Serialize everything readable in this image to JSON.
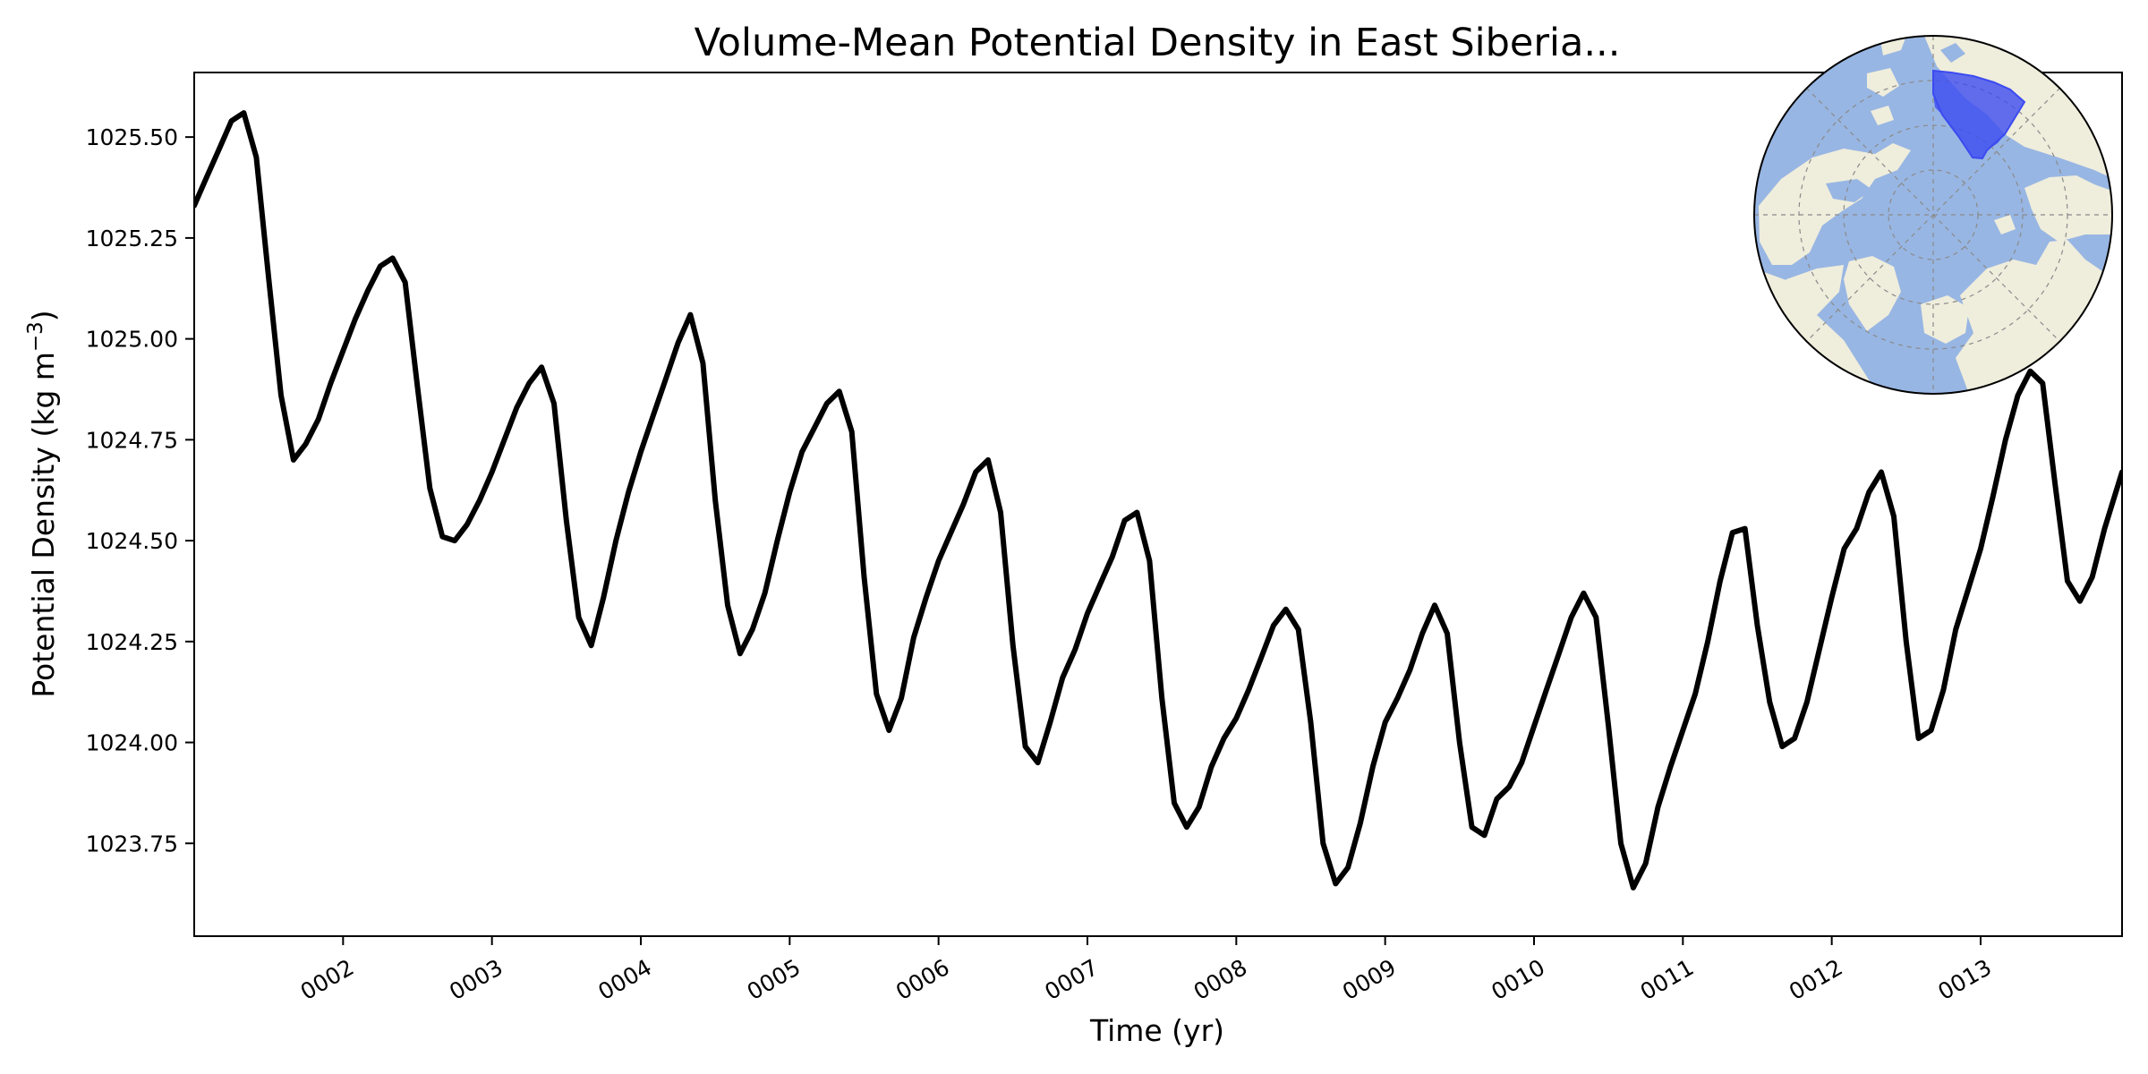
{
  "chart_data": {
    "type": "line",
    "title": "Volume-Mean Potential Density in East Siberia...",
    "xlabel": "Time (yr)",
    "ylabel": "Potential Density (kg m",
    "ylabel_exponent": "−3",
    "ylabel_close": ")",
    "xlim": [
      1.0,
      13.95
    ],
    "ylim": [
      1023.52,
      1025.66
    ],
    "grid": false,
    "x_ticks": [
      {
        "value": 2,
        "label": "0002"
      },
      {
        "value": 3,
        "label": "0003"
      },
      {
        "value": 4,
        "label": "0004"
      },
      {
        "value": 5,
        "label": "0005"
      },
      {
        "value": 6,
        "label": "0006"
      },
      {
        "value": 7,
        "label": "0007"
      },
      {
        "value": 8,
        "label": "0008"
      },
      {
        "value": 9,
        "label": "0009"
      },
      {
        "value": 10,
        "label": "0010"
      },
      {
        "value": 11,
        "label": "0011"
      },
      {
        "value": 12,
        "label": "0012"
      },
      {
        "value": 13,
        "label": "0013"
      }
    ],
    "y_ticks": [
      {
        "value": 1023.75,
        "label": "1023.75"
      },
      {
        "value": 1024.0,
        "label": "1024.00"
      },
      {
        "value": 1024.25,
        "label": "1024.25"
      },
      {
        "value": 1024.5,
        "label": "1024.50"
      },
      {
        "value": 1024.75,
        "label": "1024.75"
      },
      {
        "value": 1025.0,
        "label": "1025.00"
      },
      {
        "value": 1025.25,
        "label": "1025.25"
      },
      {
        "value": 1025.5,
        "label": "1025.50"
      }
    ],
    "series": [
      {
        "color": "#000000",
        "x": [
          1.0,
          1.083,
          1.167,
          1.25,
          1.333,
          1.417,
          1.5,
          1.583,
          1.667,
          1.75,
          1.833,
          1.917,
          2.0,
          2.083,
          2.167,
          2.25,
          2.333,
          2.417,
          2.5,
          2.583,
          2.667,
          2.75,
          2.833,
          2.917,
          3.0,
          3.083,
          3.167,
          3.25,
          3.333,
          3.417,
          3.5,
          3.583,
          3.667,
          3.75,
          3.833,
          3.917,
          4.0,
          4.083,
          4.167,
          4.25,
          4.333,
          4.417,
          4.5,
          4.583,
          4.667,
          4.75,
          4.833,
          4.917,
          5.0,
          5.083,
          5.167,
          5.25,
          5.333,
          5.417,
          5.5,
          5.583,
          5.667,
          5.75,
          5.833,
          5.917,
          6.0,
          6.083,
          6.167,
          6.25,
          6.333,
          6.417,
          6.5,
          6.583,
          6.667,
          6.75,
          6.833,
          6.917,
          7.0,
          7.083,
          7.167,
          7.25,
          7.333,
          7.417,
          7.5,
          7.583,
          7.667,
          7.75,
          7.833,
          7.917,
          8.0,
          8.083,
          8.167,
          8.25,
          8.333,
          8.417,
          8.5,
          8.583,
          8.667,
          8.75,
          8.833,
          8.917,
          9.0,
          9.083,
          9.167,
          9.25,
          9.333,
          9.417,
          9.5,
          9.583,
          9.667,
          9.75,
          9.833,
          9.917,
          10.0,
          10.083,
          10.167,
          10.25,
          10.333,
          10.417,
          10.5,
          10.583,
          10.667,
          10.75,
          10.833,
          10.917,
          11.0,
          11.083,
          11.167,
          11.25,
          11.333,
          11.417,
          11.5,
          11.583,
          11.667,
          11.75,
          11.833,
          11.917,
          12.0,
          12.083,
          12.167,
          12.25,
          12.333,
          12.417,
          12.5,
          12.583,
          12.667,
          12.75,
          12.833,
          12.917,
          13.0,
          13.083,
          13.167,
          13.25,
          13.333,
          13.417,
          13.5,
          13.583,
          13.667,
          13.75,
          13.833,
          13.95
        ],
        "y": [
          1025.33,
          1025.4,
          1025.47,
          1025.54,
          1025.56,
          1025.45,
          1025.15,
          1024.86,
          1024.7,
          1024.74,
          1024.8,
          1024.89,
          1024.97,
          1025.05,
          1025.12,
          1025.18,
          1025.2,
          1025.14,
          1024.88,
          1024.63,
          1024.51,
          1024.5,
          1024.54,
          1024.6,
          1024.67,
          1024.75,
          1024.83,
          1024.89,
          1024.93,
          1024.84,
          1024.55,
          1024.31,
          1024.24,
          1024.36,
          1024.5,
          1024.62,
          1024.72,
          1024.81,
          1024.9,
          1024.99,
          1025.06,
          1024.94,
          1024.6,
          1024.34,
          1024.22,
          1024.28,
          1024.37,
          1024.5,
          1024.62,
          1024.72,
          1024.78,
          1024.84,
          1024.87,
          1024.77,
          1024.41,
          1024.12,
          1024.03,
          1024.11,
          1024.26,
          1024.36,
          1024.45,
          1024.52,
          1024.59,
          1024.67,
          1024.7,
          1024.57,
          1024.24,
          1023.99,
          1023.95,
          1024.05,
          1024.16,
          1024.23,
          1024.32,
          1024.39,
          1024.46,
          1024.55,
          1024.57,
          1024.45,
          1024.11,
          1023.85,
          1023.79,
          1023.84,
          1023.94,
          1024.01,
          1024.06,
          1024.13,
          1024.21,
          1024.29,
          1024.33,
          1024.28,
          1024.05,
          1023.75,
          1023.65,
          1023.69,
          1023.8,
          1023.94,
          1024.05,
          1024.11,
          1024.18,
          1024.27,
          1024.34,
          1024.27,
          1024.0,
          1023.79,
          1023.77,
          1023.86,
          1023.89,
          1023.95,
          1024.04,
          1024.13,
          1024.22,
          1024.31,
          1024.37,
          1024.31,
          1024.04,
          1023.75,
          1023.64,
          1023.7,
          1023.84,
          1023.94,
          1024.03,
          1024.12,
          1024.25,
          1024.4,
          1024.52,
          1024.53,
          1024.29,
          1024.1,
          1023.99,
          1024.01,
          1024.1,
          1024.23,
          1024.36,
          1024.48,
          1024.53,
          1024.62,
          1024.67,
          1024.56,
          1024.25,
          1024.01,
          1024.03,
          1024.13,
          1024.28,
          1024.38,
          1024.48,
          1024.61,
          1024.75,
          1024.86,
          1024.92,
          1024.89,
          1024.64,
          1024.4,
          1024.35,
          1024.41,
          1024.53,
          1024.67
        ]
      }
    ]
  },
  "inset_map": {
    "projection": "north-polar-stereographic",
    "ocean_color": "#98b6e3",
    "land_color": "#efeddc",
    "region_color": "#3c4bf0"
  }
}
